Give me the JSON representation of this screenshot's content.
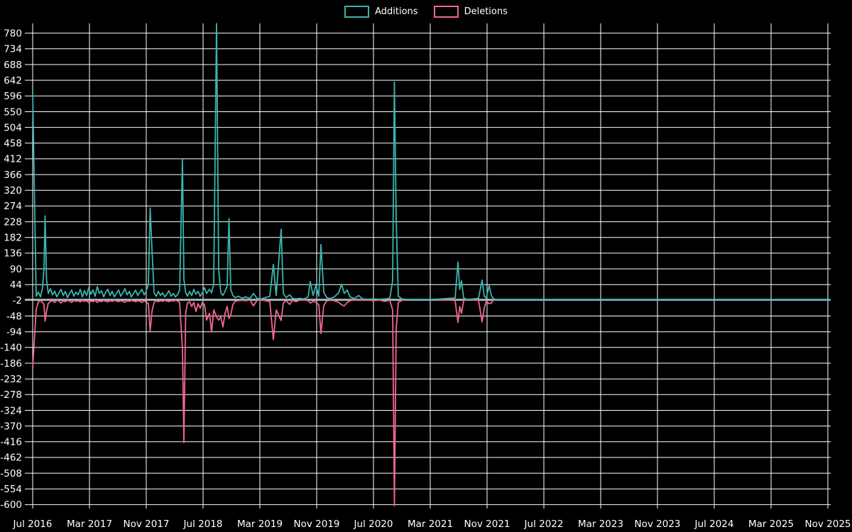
{
  "page": {
    "background_color": "#000000",
    "text_color": "#ffffff"
  },
  "legend": {
    "items": [
      {
        "label": "Additions",
        "color": "#38b6af"
      },
      {
        "label": "Deletions",
        "color": "#f3688b"
      }
    ]
  },
  "chart_data": {
    "type": "line",
    "title": "",
    "xlabel": "",
    "ylabel": "",
    "grid": true,
    "legend_position": "top-center",
    "background_color": "#000000",
    "grid_color": "#ffffff",
    "zero_line_color": "#a8bfc8",
    "x_axis": {
      "unit": "months since Jul 2016",
      "range_months": [
        0,
        112.4
      ],
      "tick_interval_months": 8,
      "tick_labels": [
        "Jul 2016",
        "Mar 2017",
        "Nov 2017",
        "Jul 2018",
        "Mar 2019",
        "Nov 2019",
        "Jul 2020",
        "Mar 2021",
        "Nov 2021",
        "Jul 2022",
        "Mar 2023",
        "Nov 2023",
        "Jul 2024",
        "Mar 2025",
        "Nov 2025"
      ]
    },
    "y_axis": {
      "min": -600,
      "max": 780,
      "tick_step": 46,
      "tick_labels": [
        780,
        734,
        688,
        642,
        596,
        550,
        504,
        458,
        412,
        366,
        320,
        274,
        228,
        182,
        136,
        90,
        44,
        -2,
        -48,
        -94,
        -140,
        -186,
        -232,
        -278,
        -324,
        -370,
        -416,
        -462,
        -508,
        -554,
        -600
      ]
    },
    "series": [
      {
        "name": "Additions",
        "color": "#38b6af",
        "value_index": 1
      },
      {
        "name": "Deletions",
        "color": "#f3688b",
        "value_index": 2
      }
    ],
    "samples_format": "[months_since_jul_2016, additions, deletions]",
    "samples": [
      [
        0,
        612,
        -200
      ],
      [
        0.5,
        10,
        -28
      ],
      [
        0.8,
        22,
        -6
      ],
      [
        1.1,
        8,
        -3
      ],
      [
        1.4,
        35,
        -8
      ],
      [
        1.6,
        90,
        -15
      ],
      [
        1.75,
        245,
        -63
      ],
      [
        1.95,
        60,
        -35
      ],
      [
        2.2,
        18,
        -10
      ],
      [
        2.5,
        32,
        -6
      ],
      [
        2.8,
        14,
        -3
      ],
      [
        3.1,
        25,
        -8
      ],
      [
        3.4,
        8,
        -2
      ],
      [
        3.7,
        20,
        -4
      ],
      [
        4,
        30,
        -10
      ],
      [
        4.3,
        12,
        -3
      ],
      [
        4.6,
        24,
        -6
      ],
      [
        4.9,
        6,
        -2
      ],
      [
        5.2,
        18,
        -4
      ],
      [
        5.5,
        28,
        -8
      ],
      [
        5.8,
        10,
        -2
      ],
      [
        6.1,
        22,
        -5
      ],
      [
        6.4,
        14,
        -3
      ],
      [
        6.7,
        30,
        -7
      ],
      [
        7,
        8,
        -2
      ],
      [
        7.3,
        26,
        -5
      ],
      [
        7.6,
        12,
        -3
      ],
      [
        7.9,
        35,
        -9
      ],
      [
        8.2,
        16,
        -4
      ],
      [
        8.5,
        28,
        -6
      ],
      [
        8.8,
        10,
        -2
      ],
      [
        9.1,
        38,
        -8
      ],
      [
        9.4,
        18,
        -4
      ],
      [
        9.7,
        26,
        -6
      ],
      [
        10,
        8,
        -2
      ],
      [
        10.3,
        22,
        -5
      ],
      [
        10.6,
        30,
        -7
      ],
      [
        10.9,
        12,
        -3
      ],
      [
        11.2,
        24,
        -5
      ],
      [
        11.5,
        8,
        -2
      ],
      [
        11.8,
        18,
        -4
      ],
      [
        12.1,
        28,
        -6
      ],
      [
        12.4,
        10,
        -3
      ],
      [
        12.7,
        20,
        -5
      ],
      [
        13,
        32,
        -8
      ],
      [
        13.3,
        14,
        -3
      ],
      [
        13.6,
        24,
        -5
      ],
      [
        13.9,
        8,
        -2
      ],
      [
        14.2,
        18,
        -4
      ],
      [
        14.5,
        28,
        -6
      ],
      [
        14.8,
        12,
        -3
      ],
      [
        15.1,
        22,
        -5
      ],
      [
        15.4,
        30,
        -8
      ],
      [
        15.7,
        14,
        -4
      ],
      [
        16,
        25,
        -6
      ],
      [
        16.3,
        45,
        -12
      ],
      [
        16.55,
        268,
        -92
      ],
      [
        16.8,
        150,
        -35
      ],
      [
        17.1,
        20,
        -8
      ],
      [
        17.4,
        10,
        -3
      ],
      [
        17.7,
        24,
        -6
      ],
      [
        18,
        12,
        -3
      ],
      [
        18.3,
        20,
        -5
      ],
      [
        18.6,
        8,
        -2
      ],
      [
        18.9,
        16,
        -4
      ],
      [
        19.2,
        26,
        -6
      ],
      [
        19.5,
        10,
        -3
      ],
      [
        19.8,
        18,
        -4
      ],
      [
        20.1,
        8,
        -2
      ],
      [
        20.4,
        14,
        -4
      ],
      [
        20.7,
        28,
        -8
      ],
      [
        21.1,
        410,
        -145
      ],
      [
        21.3,
        60,
        -418
      ],
      [
        21.55,
        20,
        -40
      ],
      [
        21.8,
        10,
        -10
      ],
      [
        22.1,
        24,
        -6
      ],
      [
        22.4,
        12,
        -20
      ],
      [
        22.7,
        30,
        -8
      ],
      [
        23,
        16,
        -35
      ],
      [
        23.3,
        24,
        -12
      ],
      [
        23.6,
        10,
        -25
      ],
      [
        23.9,
        20,
        -8
      ],
      [
        24.2,
        35,
        -15
      ],
      [
        24.5,
        18,
        -60
      ],
      [
        24.9,
        30,
        -40
      ],
      [
        25.2,
        20,
        -95
      ],
      [
        25.5,
        45,
        -30
      ],
      [
        25.9,
        808,
        -50
      ],
      [
        26.2,
        90,
        -60
      ],
      [
        26.5,
        20,
        -50
      ],
      [
        26.8,
        12,
        -80
      ],
      [
        27.1,
        25,
        -40
      ],
      [
        27.4,
        40,
        -20
      ],
      [
        27.65,
        237,
        -55
      ],
      [
        27.9,
        30,
        -45
      ],
      [
        28.2,
        12,
        -15
      ],
      [
        28.5,
        6,
        -5
      ],
      [
        29,
        10,
        -3
      ],
      [
        29.5,
        4,
        -2
      ],
      [
        30,
        8,
        -3
      ],
      [
        30.6,
        3,
        -1
      ],
      [
        31.1,
        18,
        -18
      ],
      [
        31.6,
        4,
        -2
      ],
      [
        32.2,
        2,
        -1
      ],
      [
        32.8,
        6,
        -3
      ],
      [
        33.4,
        10,
        -5
      ],
      [
        33.9,
        103,
        -117
      ],
      [
        34.3,
        12,
        -30
      ],
      [
        35,
        206,
        -61
      ],
      [
        35.3,
        18,
        -10
      ],
      [
        35.7,
        6,
        -3
      ],
      [
        36.2,
        14,
        -14
      ],
      [
        36.6,
        4,
        -2
      ],
      [
        37.1,
        2,
        -6
      ],
      [
        37.6,
        4,
        -1
      ],
      [
        38.2,
        2,
        -1
      ],
      [
        38.8,
        8,
        -3
      ],
      [
        39.1,
        53,
        -10
      ],
      [
        39.5,
        12,
        -5
      ],
      [
        39.9,
        42,
        -8
      ],
      [
        40.3,
        10,
        -15
      ],
      [
        40.6,
        161,
        -99
      ],
      [
        41,
        22,
        -18
      ],
      [
        41.4,
        6,
        -4
      ],
      [
        41.9,
        3,
        -2
      ],
      [
        42.5,
        8,
        -3
      ],
      [
        43.1,
        20,
        -8
      ],
      [
        43.5,
        45,
        -15
      ],
      [
        43.9,
        18,
        -18
      ],
      [
        44.3,
        28,
        -8
      ],
      [
        44.7,
        8,
        -3
      ],
      [
        45.3,
        3,
        -1
      ],
      [
        45.9,
        12,
        -2
      ],
      [
        46.5,
        2,
        -1
      ],
      [
        47.2,
        1,
        -1
      ],
      [
        48,
        2,
        -3
      ],
      [
        48.8,
        1,
        -1
      ],
      [
        49.6,
        2,
        -5
      ],
      [
        50.3,
        4,
        -2
      ],
      [
        50.7,
        55,
        -30
      ],
      [
        50.95,
        637,
        -603
      ],
      [
        51.2,
        236,
        -85
      ],
      [
        51.5,
        10,
        -8
      ],
      [
        52,
        2,
        -2
      ],
      [
        53,
        0,
        0
      ],
      [
        56,
        0,
        0
      ],
      [
        59.5,
        5,
        -2
      ],
      [
        59.9,
        110,
        -67
      ],
      [
        60.15,
        30,
        -20
      ],
      [
        60.4,
        55,
        -40
      ],
      [
        60.7,
        5,
        -3
      ],
      [
        61.2,
        0,
        0
      ],
      [
        62.8,
        4,
        -2
      ],
      [
        63.3,
        57,
        -65
      ],
      [
        63.6,
        10,
        -25
      ],
      [
        63.9,
        5,
        -5
      ],
      [
        64.3,
        41,
        -12
      ],
      [
        64.6,
        12,
        -10
      ],
      [
        64.9,
        2,
        -1
      ],
      [
        65.5,
        0,
        0
      ],
      [
        112.4,
        0,
        0
      ]
    ]
  }
}
